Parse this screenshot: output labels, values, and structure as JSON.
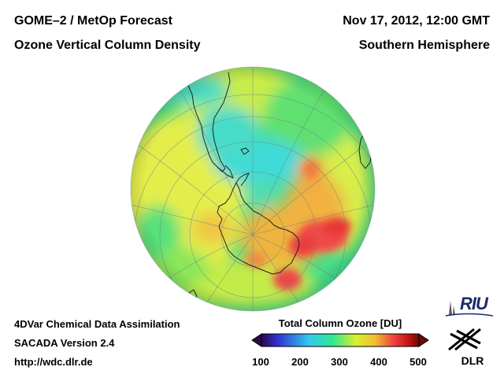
{
  "header": {
    "title_line1": "GOME–2 / MetOp Forecast",
    "title_line2": "Ozone Vertical Column Density",
    "date": "Nov 17, 2012, 12:00 GMT",
    "region": "Southern Hemisphere"
  },
  "footer": {
    "method": "4DVar Chemical Data Assimilation",
    "version": "SACADA Version 2.4",
    "url": "http://wdc.dlr.de"
  },
  "colorbar": {
    "title": "Total Column Ozone [DU]",
    "ticks": [
      "100",
      "200",
      "300",
      "400",
      "500"
    ],
    "range": [
      100,
      500
    ],
    "colors": [
      "#2a0a4a",
      "#3030d0",
      "#30c8f0",
      "#30e890",
      "#d8f030",
      "#f0c030",
      "#f04040",
      "#c01010",
      "#6a0a0a"
    ]
  },
  "logos": {
    "riu": "RIU",
    "dlr": "DLR"
  },
  "map": {
    "projection": "polar orthographic, South Pole centred",
    "colors": {
      "ocean_bg": "#2fd8a0",
      "yellow": "#e6f04a",
      "green": "#7ae850",
      "cyan": "#48e0e0",
      "orange": "#f2b43c",
      "red": "#f04448",
      "darkred": "#e02a2a"
    }
  }
}
